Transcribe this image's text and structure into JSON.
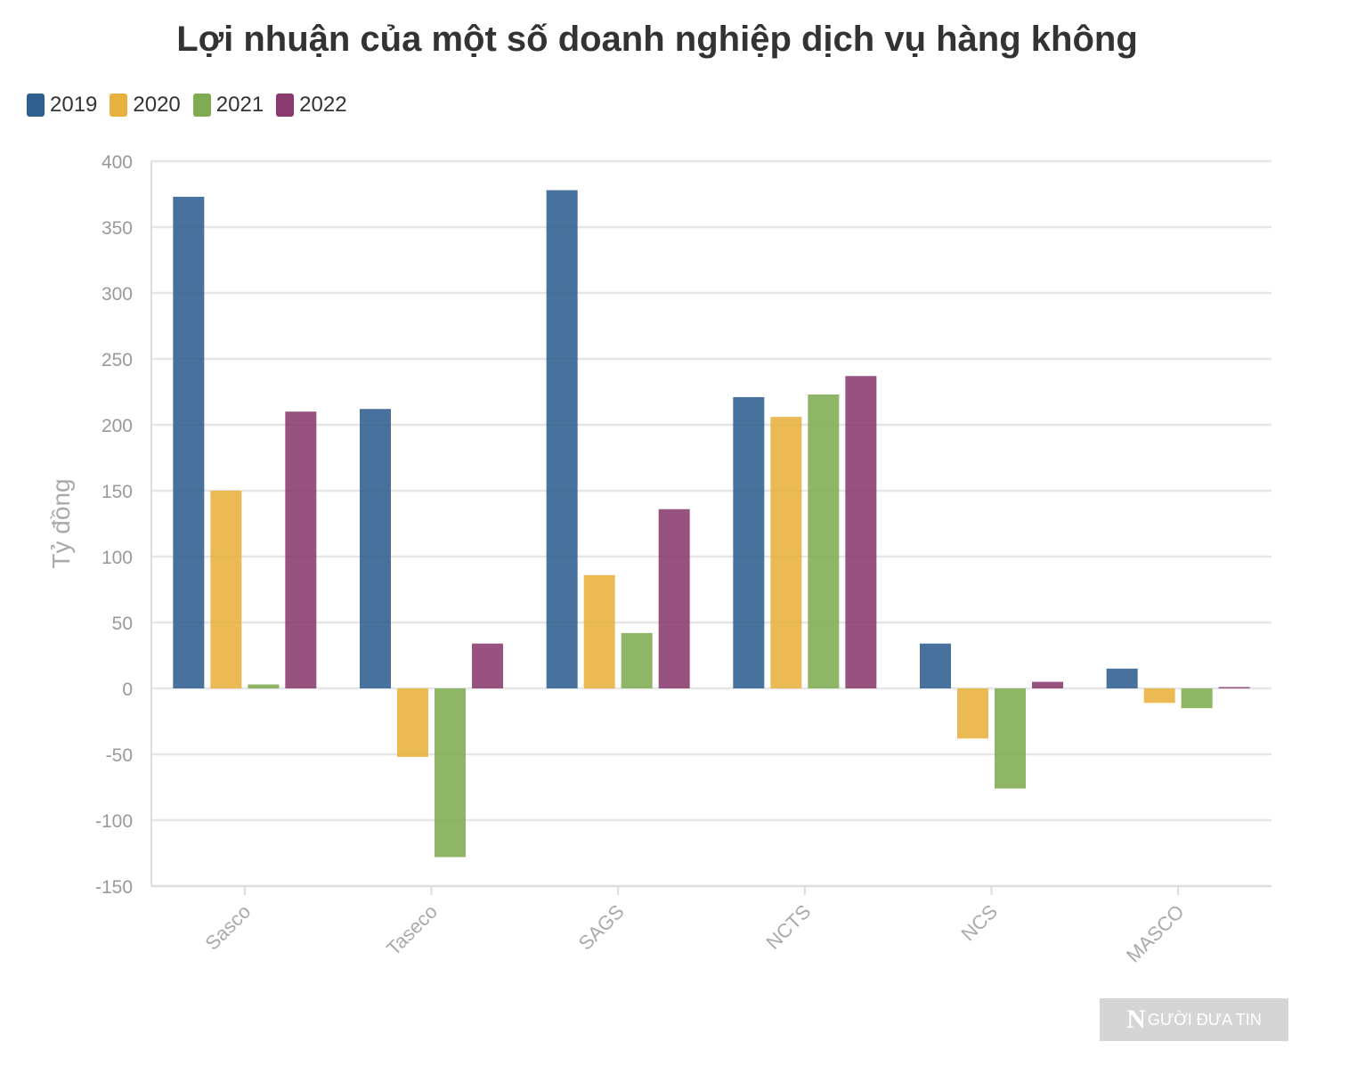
{
  "chart_data": {
    "type": "bar",
    "title": "Lợi nhuận của một số doanh nghiệp dịch vụ hàng không",
    "ylabel": "Tỷ đồng",
    "xlabel": "",
    "categories": [
      "Sasco",
      "Taseco",
      "SAGS",
      "NCTS",
      "NCS",
      "MASCO"
    ],
    "ylim": [
      -150,
      400
    ],
    "yticks": [
      400,
      350,
      300,
      250,
      200,
      150,
      100,
      50,
      0,
      -50,
      -100,
      -150
    ],
    "grid": true,
    "legend_position": "top-left",
    "series": [
      {
        "name": "2019",
        "color": "#2f5f8f",
        "values": [
          373,
          212,
          378,
          221,
          34,
          15
        ]
      },
      {
        "name": "2020",
        "color": "#e8b03e",
        "values": [
          150,
          -52,
          86,
          206,
          -38,
          -11
        ]
      },
      {
        "name": "2021",
        "color": "#7fab52",
        "values": [
          3,
          -128,
          42,
          223,
          -76,
          -15
        ]
      },
      {
        "name": "2022",
        "color": "#8a3a6e",
        "values": [
          210,
          34,
          136,
          237,
          5,
          1
        ]
      }
    ]
  },
  "watermark": {
    "initial": "N",
    "text": "GƯỜI ĐƯA TIN"
  }
}
